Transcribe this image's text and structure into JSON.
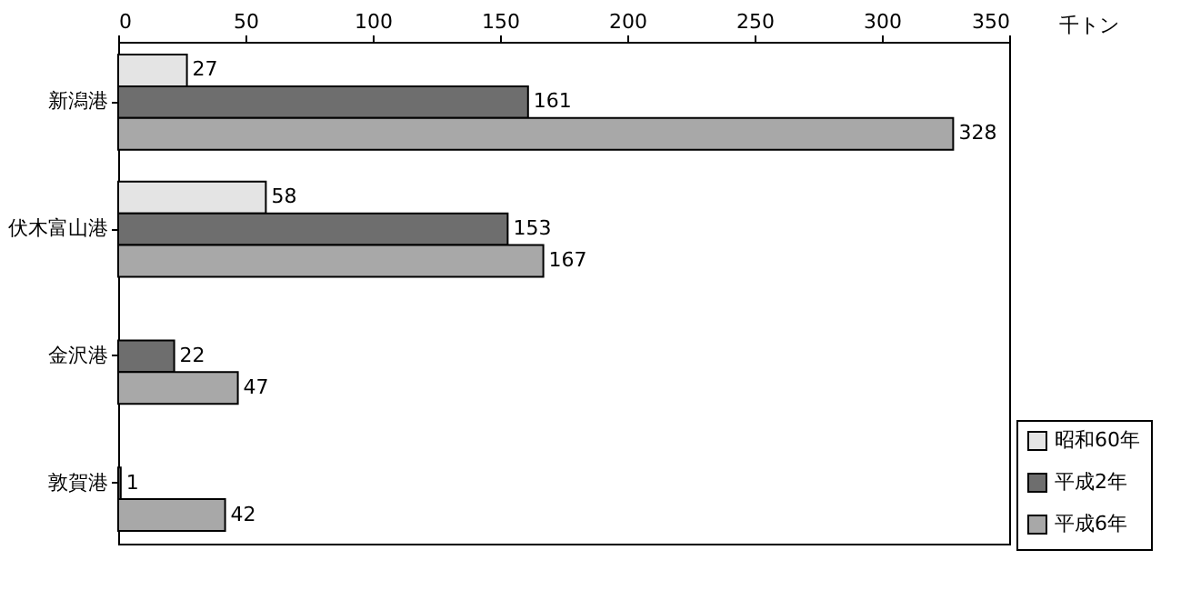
{
  "chart_data": {
    "type": "bar",
    "orientation": "horizontal",
    "xlabel": "千トン",
    "categories": [
      "新潟港",
      "伏木富山港",
      "金沢港",
      "敦賀港"
    ],
    "series": [
      {
        "name": "昭和60年",
        "color": "#e4e4e4",
        "values": [
          27,
          58,
          null,
          null
        ]
      },
      {
        "name": "平成2年",
        "color": "#6e6e6e",
        "values": [
          161,
          153,
          22,
          1
        ]
      },
      {
        "name": "平成6年",
        "color": "#a8a8a8",
        "values": [
          328,
          167,
          47,
          42
        ]
      }
    ],
    "xlim": [
      0,
      350
    ],
    "xticks": [
      0,
      50,
      100,
      150,
      200,
      250,
      300,
      350
    ],
    "grid": false,
    "legend": "bottom right",
    "data_labels": true
  }
}
